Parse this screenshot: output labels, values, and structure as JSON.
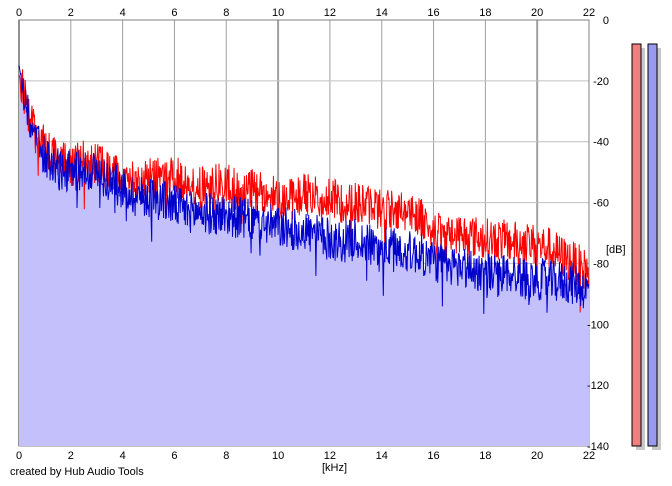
{
  "footer": {
    "credit": "created by Hub Audio Tools"
  },
  "chart_data": {
    "type": "line",
    "title": "",
    "xlabel": "[kHz]",
    "ylabel": "[dB]",
    "xlim": [
      0,
      22
    ],
    "ylim": [
      -140,
      0
    ],
    "x_ticks": [
      0,
      2,
      4,
      6,
      8,
      10,
      12,
      14,
      16,
      18,
      20,
      22
    ],
    "y_ticks": [
      0,
      -20,
      -40,
      -60,
      -80,
      -100,
      -120,
      -140
    ],
    "grid": true,
    "legend": "none",
    "colors": {
      "red_series": "#ff0000",
      "blue_series": "#0000cc",
      "fill": "#c4c0fc",
      "meter_left": "#f08080",
      "meter_right": "#9999ee"
    },
    "series": [
      {
        "color": "#ff0000",
        "x": [
          0,
          0.5,
          1,
          1.5,
          2,
          2.5,
          3,
          3.5,
          4,
          4.5,
          5,
          5.5,
          6,
          6.5,
          7,
          7.5,
          8,
          8.5,
          9,
          9.5,
          10,
          10.5,
          11,
          11.5,
          12,
          12.5,
          13,
          13.5,
          14,
          14.5,
          15,
          15.5,
          16,
          16.5,
          17,
          17.5,
          18,
          18.5,
          19,
          19.5,
          20,
          20.5,
          21,
          21.5,
          22
        ],
        "values": [
          -18,
          -35,
          -42,
          -46,
          -48,
          -46,
          -47,
          -50,
          -52,
          -53,
          -51,
          -52,
          -52,
          -53,
          -55,
          -54,
          -54,
          -56,
          -56,
          -57,
          -58,
          -59,
          -57,
          -58,
          -59,
          -60,
          -60,
          -61,
          -62,
          -62,
          -63,
          -64,
          -70,
          -71,
          -70,
          -71,
          -72,
          -72,
          -73,
          -73,
          -74,
          -75,
          -78,
          -80,
          -83
        ]
      },
      {
        "color": "#0000cc",
        "x": [
          0,
          0.5,
          1,
          1.5,
          2,
          2.5,
          3,
          3.5,
          4,
          4.5,
          5,
          5.5,
          6,
          6.5,
          7,
          7.5,
          8,
          8.5,
          9,
          9.5,
          10,
          10.5,
          11,
          11.5,
          12,
          12.5,
          13,
          13.5,
          14,
          14.5,
          15,
          15.5,
          16,
          16.5,
          17,
          17.5,
          18,
          18.5,
          19,
          19.5,
          20,
          20.5,
          21,
          21.5,
          22
        ],
        "values": [
          -15,
          -38,
          -45,
          -49,
          -50,
          -49,
          -50,
          -53,
          -55,
          -58,
          -58,
          -59,
          -61,
          -63,
          -63,
          -64,
          -64,
          -65,
          -66,
          -67,
          -68,
          -69,
          -69,
          -71,
          -72,
          -73,
          -72,
          -74,
          -75,
          -75,
          -76,
          -77,
          -79,
          -81,
          -81,
          -82,
          -83,
          -84,
          -83,
          -85,
          -85,
          -86,
          -86,
          -87,
          -89
        ]
      }
    ]
  }
}
